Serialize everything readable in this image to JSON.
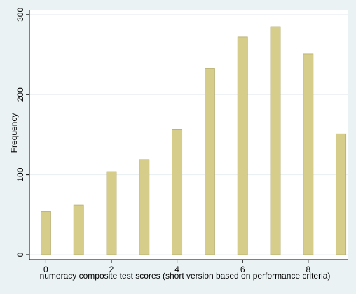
{
  "chart_data": {
    "type": "bar",
    "x": [
      0,
      1,
      2,
      3,
      4,
      5,
      6,
      7,
      8,
      9
    ],
    "values": [
      54,
      62,
      104,
      119,
      157,
      233,
      272,
      285,
      251,
      151
    ],
    "color": "#d6cd8b",
    "xlabel": "numeracy composite test scores (short version based on performance criteria)",
    "ylabel": "Frequency",
    "xlim": [
      -0.5,
      9.2
    ],
    "xticks": [
      0,
      2,
      4,
      6,
      8
    ],
    "ylim": [
      0,
      306
    ],
    "yticks": [
      0,
      100,
      200,
      300
    ],
    "grid": true
  }
}
